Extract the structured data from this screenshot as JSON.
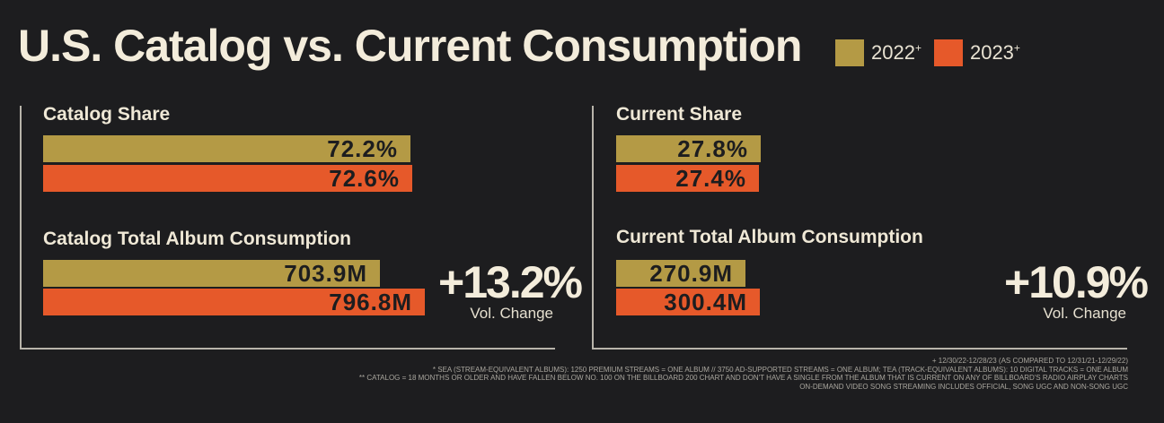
{
  "title": "U.S. Catalog vs. Current Consumption",
  "legend": [
    {
      "label": "2022",
      "sup": "+",
      "color": "#b49a45"
    },
    {
      "label": "2023",
      "sup": "+",
      "color": "#e6592a"
    }
  ],
  "chart_data": [
    {
      "type": "bar",
      "title": "Catalog Share",
      "categories": [
        "2022",
        "2023"
      ],
      "values": [
        72.2,
        72.6
      ],
      "labels": [
        "72.2%",
        "72.6%"
      ],
      "unit": "%"
    },
    {
      "type": "bar",
      "title": "Catalog Total Album Consumption",
      "categories": [
        "2022",
        "2023"
      ],
      "values": [
        703.9,
        796.8
      ],
      "labels": [
        "703.9M",
        "796.8M"
      ],
      "unit": "M",
      "vol_change": "+13.2%",
      "vol_change_label": "Vol. Change"
    },
    {
      "type": "bar",
      "title": "Current Share",
      "categories": [
        "2022",
        "2023"
      ],
      "values": [
        27.8,
        27.4
      ],
      "labels": [
        "27.8%",
        "27.4%"
      ],
      "unit": "%"
    },
    {
      "type": "bar",
      "title": "Current Total Album Consumption",
      "categories": [
        "2022",
        "2023"
      ],
      "values": [
        270.9,
        300.4
      ],
      "labels": [
        "270.9M",
        "300.4M"
      ],
      "unit": "M",
      "vol_change": "+10.9%",
      "vol_change_label": "Vol. Change"
    }
  ],
  "footnotes": [
    "+ 12/30/22-12/28/23 (AS COMPARED TO 12/31/21-12/29/22)",
    "* SEA (STREAM-EQUIVALENT ALBUMS): 1250 PREMIUM STREAMS = ONE ALBUM // 3750 AD-SUPPORTED STREAMS = ONE ALBUM; TEA (TRACK-EQUIVALENT ALBUMS): 10 DIGITAL TRACKS = ONE ALBUM",
    "** CATALOG = 18 MONTHS OR OLDER AND HAVE FALLEN BELOW NO. 100 ON THE BILLBOARD 200 CHART AND DON'T HAVE A SINGLE FROM THE ALBUM THAT IS CURRENT ON ANY OF BILLBOARD'S RADIO AIRPLAY CHARTS",
    "ON-DEMAND VIDEO SONG STREAMING INCLUDES OFFICIAL, SONG UGC AND NON-SONG UGC"
  ]
}
